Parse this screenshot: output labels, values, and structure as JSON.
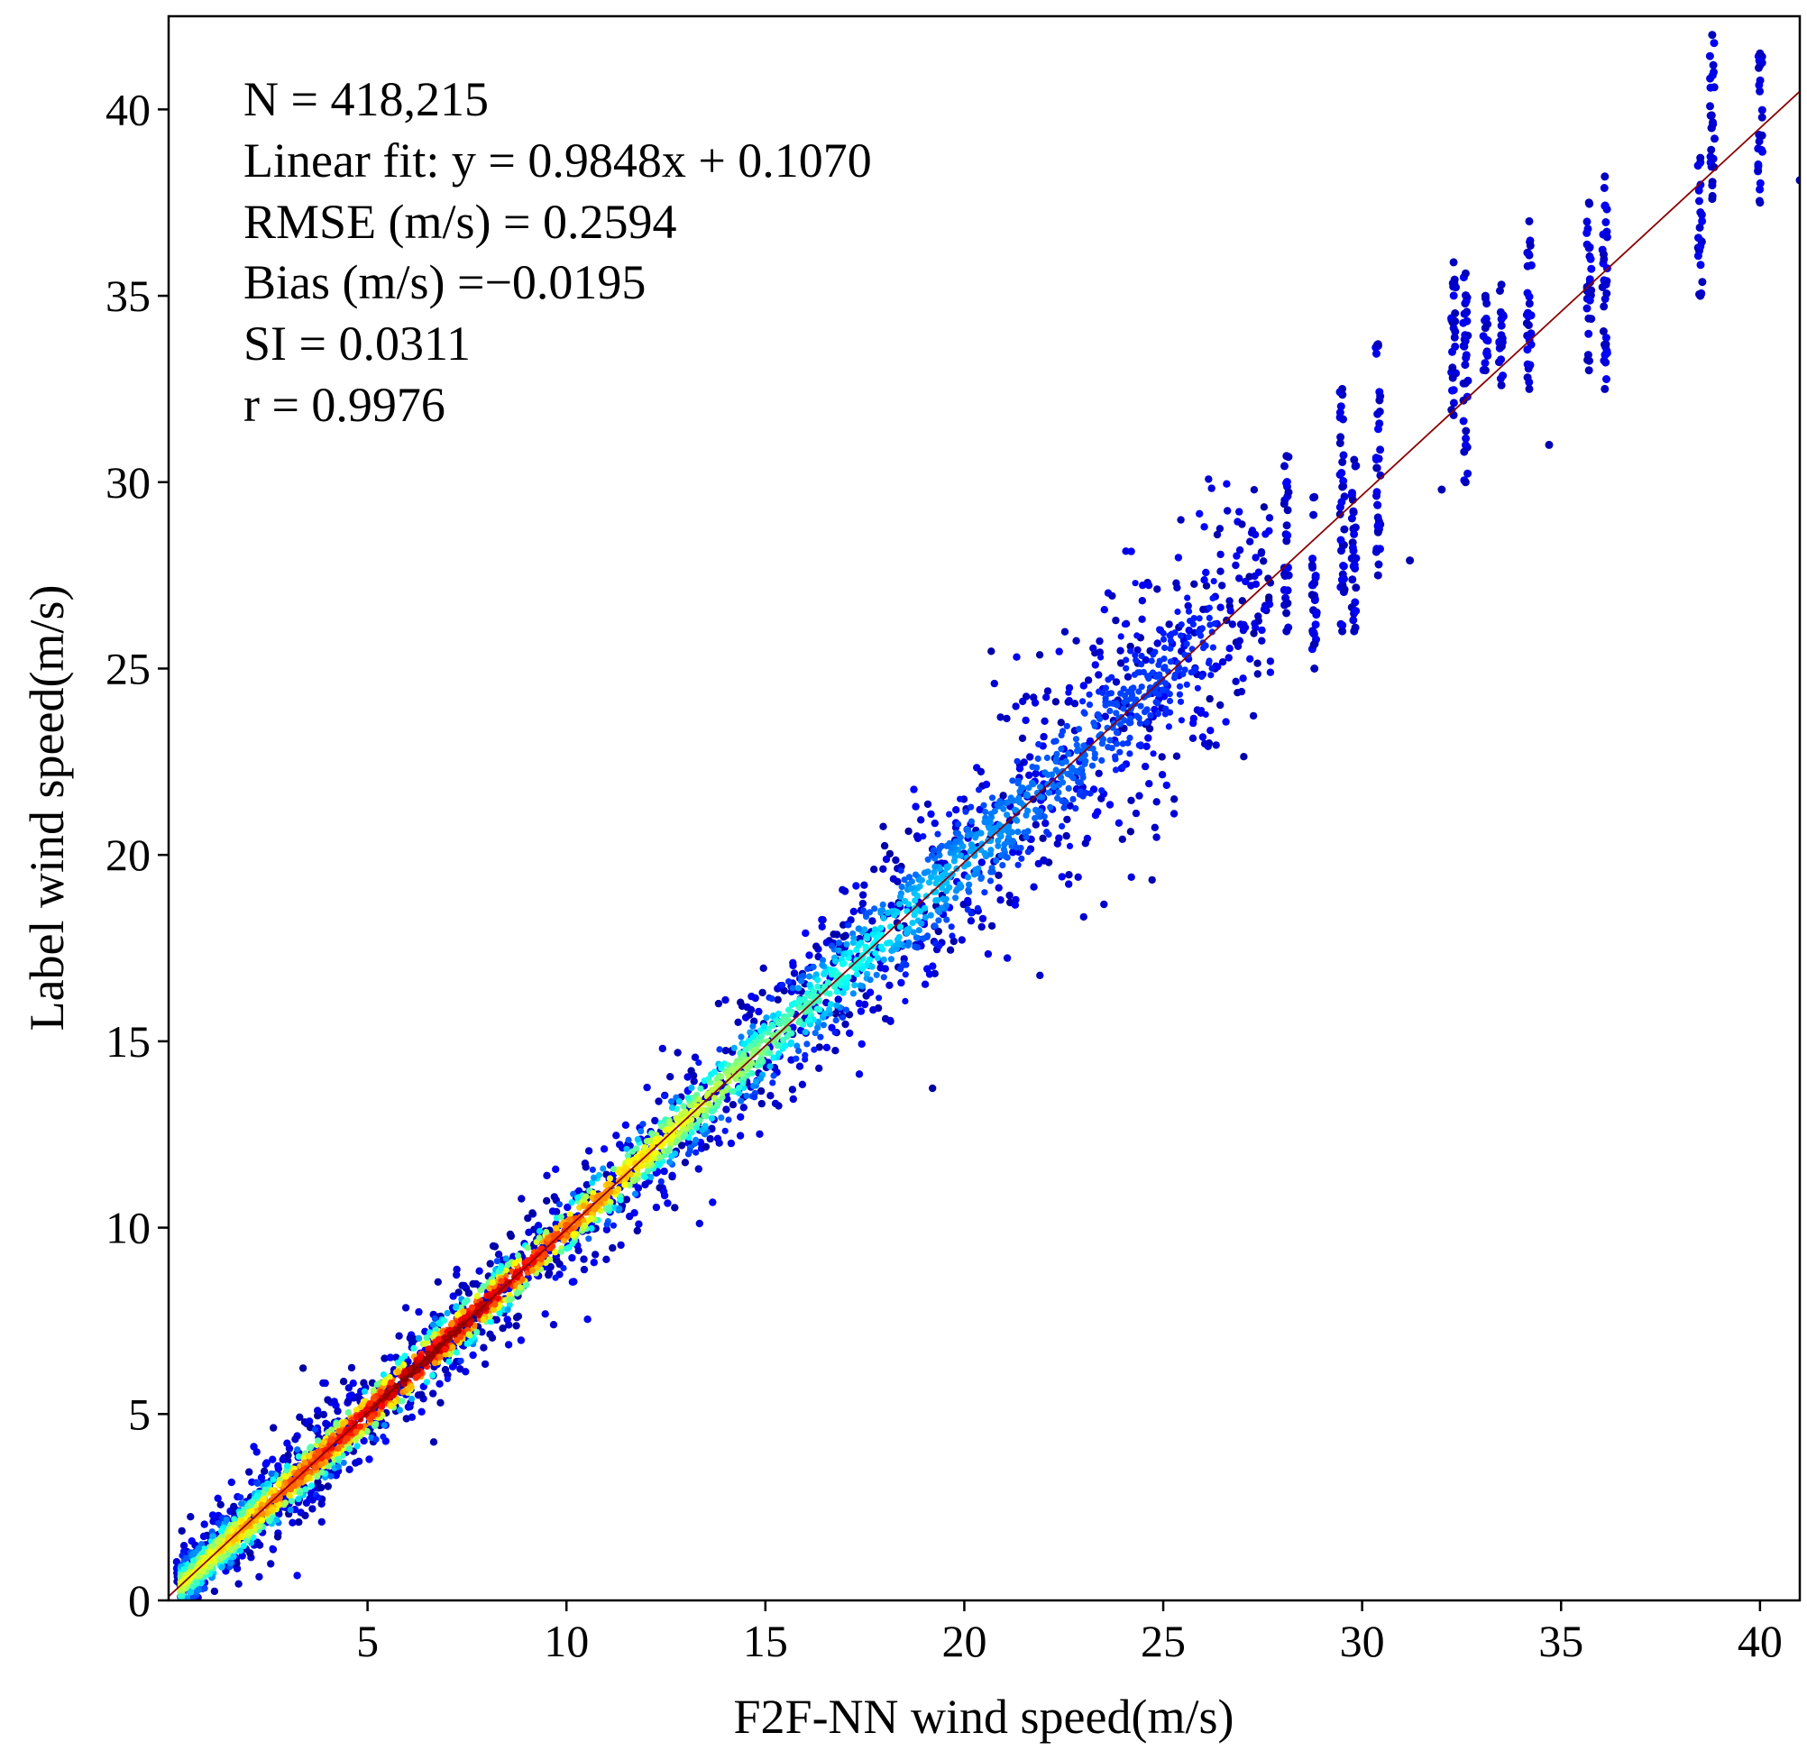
{
  "chart_data": {
    "type": "scatter",
    "subtype": "density-scatter",
    "xlabel": "F2F-NN wind speed(m/s)",
    "ylabel": "Label wind speed(m/s)",
    "xlim": [
      0,
      41
    ],
    "ylim": [
      0,
      42.5
    ],
    "xticks": [
      5,
      10,
      15,
      20,
      25,
      30,
      35,
      40
    ],
    "yticks": [
      0,
      5,
      10,
      15,
      20,
      25,
      30,
      35,
      40
    ],
    "grid": false,
    "stats": [
      "N = 418,215",
      "Linear fit: y = 0.9848x + 0.1070",
      "RMSE (m/s) = 0.2594",
      "Bias (m/s) =−0.0195",
      "SI = 0.0311",
      "r = 0.9976"
    ],
    "fit_line": {
      "slope": 0.9848,
      "intercept": 0.107,
      "color": "#8b0000"
    },
    "colormap": "jet",
    "colors": {
      "dense": "#8b0000",
      "sparse": "#00008b",
      "axis": "#000000"
    },
    "density_band": [
      {
        "x": 0.5,
        "spread": 0.5,
        "density": 0.55
      },
      {
        "x": 2,
        "spread": 0.6,
        "density": 0.7
      },
      {
        "x": 4,
        "spread": 0.6,
        "density": 0.85
      },
      {
        "x": 6,
        "spread": 0.6,
        "density": 1.0
      },
      {
        "x": 8,
        "spread": 0.6,
        "density": 0.95
      },
      {
        "x": 10,
        "spread": 0.6,
        "density": 0.8
      },
      {
        "x": 12,
        "spread": 0.7,
        "density": 0.62
      },
      {
        "x": 14,
        "spread": 0.8,
        "density": 0.5
      },
      {
        "x": 16,
        "spread": 0.9,
        "density": 0.38
      },
      {
        "x": 18,
        "spread": 1.1,
        "density": 0.28
      },
      {
        "x": 20,
        "spread": 1.3,
        "density": 0.2
      },
      {
        "x": 22,
        "spread": 1.5,
        "density": 0.14
      },
      {
        "x": 24,
        "spread": 1.6,
        "density": 0.09
      },
      {
        "x": 26,
        "spread": 1.5,
        "density": 0.05
      },
      {
        "x": 28,
        "spread": 1.4,
        "density": 0.03
      },
      {
        "x": 30,
        "spread": 1.5,
        "density": 0.02
      },
      {
        "x": 33,
        "spread": 1.4,
        "density": 0.01
      },
      {
        "x": 36,
        "spread": 1.3,
        "density": 0.008
      },
      {
        "x": 40,
        "spread": 1.2,
        "density": 0.006
      }
    ],
    "sparse_columns": [
      {
        "x": 28.1,
        "y": [
          26.0,
          30.7
        ]
      },
      {
        "x": 28.8,
        "y": [
          25.0,
          29.6
        ]
      },
      {
        "x": 29.5,
        "y": [
          26.0,
          32.5
        ]
      },
      {
        "x": 29.8,
        "y": [
          26.0,
          30.6
        ]
      },
      {
        "x": 30.4,
        "y": [
          27.5,
          33.7
        ]
      },
      {
        "x": 32.3,
        "y": [
          31.8,
          35.9
        ]
      },
      {
        "x": 32.6,
        "y": [
          30.0,
          35.6
        ]
      },
      {
        "x": 33.1,
        "y": [
          33.0,
          35.0
        ]
      },
      {
        "x": 33.5,
        "y": [
          32.6,
          35.3
        ]
      },
      {
        "x": 34.2,
        "y": [
          32.5,
          37.0
        ]
      },
      {
        "x": 35.7,
        "y": [
          33.0,
          37.5
        ]
      },
      {
        "x": 36.1,
        "y": [
          32.5,
          38.2
        ]
      },
      {
        "x": 38.5,
        "y": [
          35.0,
          38.7
        ]
      },
      {
        "x": 38.8,
        "y": [
          37.6,
          42.0
        ]
      },
      {
        "x": 40.0,
        "y": [
          37.5,
          41.5
        ]
      }
    ],
    "outliers": [
      {
        "x": 34.7,
        "y": 31.0
      },
      {
        "x": 31.2,
        "y": 27.9
      },
      {
        "x": 32.0,
        "y": 29.8
      },
      {
        "x": 41.0,
        "y": 38.1
      }
    ]
  }
}
